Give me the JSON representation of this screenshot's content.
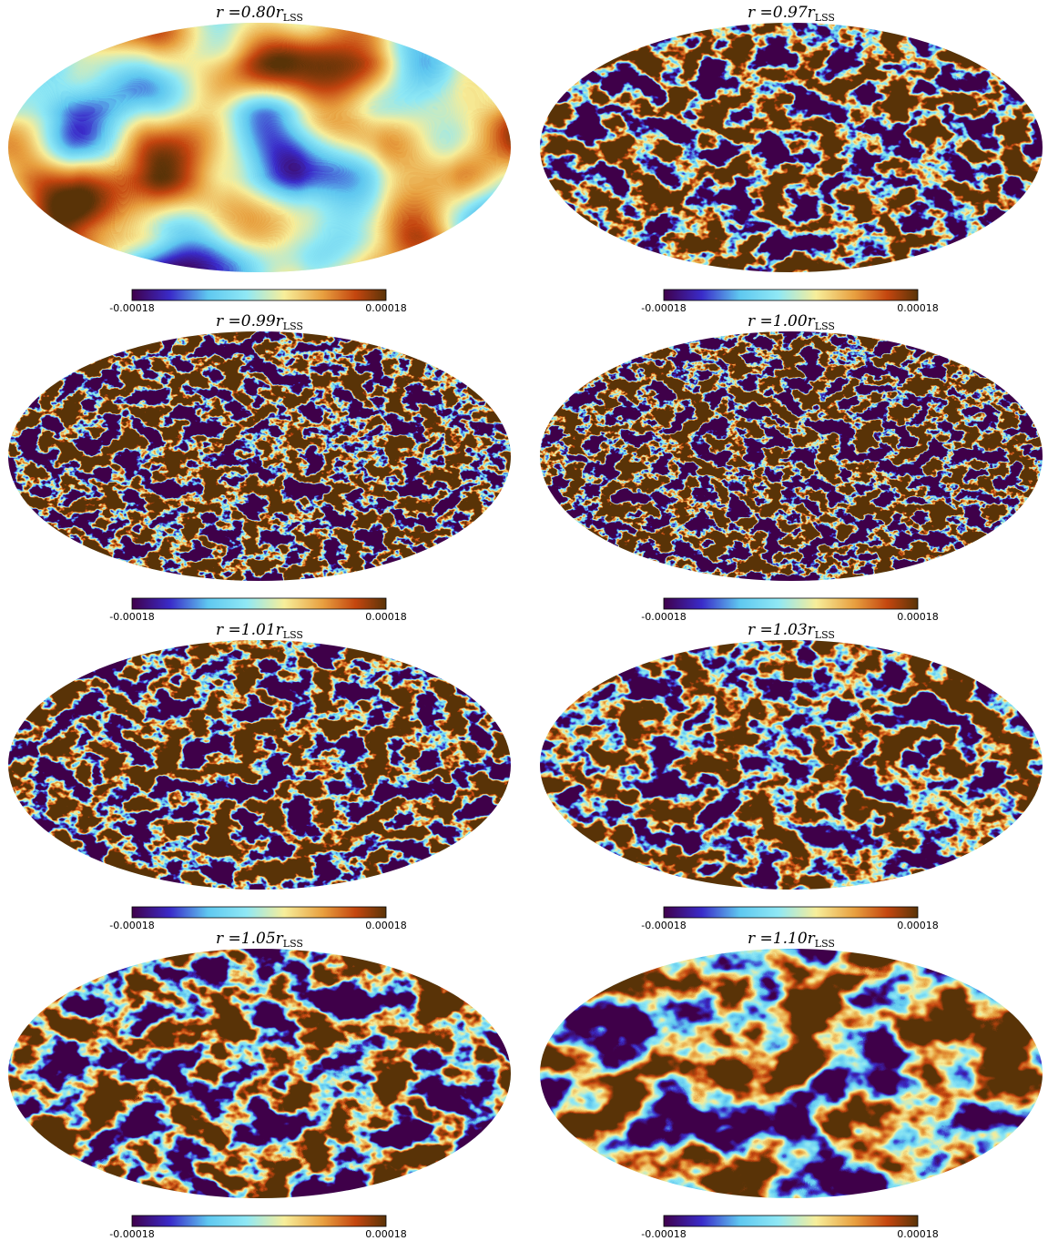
{
  "panels": [
    {
      "title": {
        "main": "r =0.80r",
        "sub": "LSS"
      },
      "colorbar": {
        "min": -0.00018,
        "max": 0.00018
      }
    },
    {
      "title": {
        "main": "r =0.97r",
        "sub": "LSS"
      },
      "colorbar": {
        "min": -0.00018,
        "max": 0.00018
      }
    },
    {
      "title": {
        "main": "r =0.99r",
        "sub": "LSS"
      },
      "colorbar": {
        "min": -0.00018,
        "max": 0.00018
      }
    },
    {
      "title": {
        "main": "r =1.00r",
        "sub": "LSS"
      },
      "colorbar": {
        "min": -0.00018,
        "max": 0.00018
      }
    },
    {
      "title": {
        "main": "r =1.01r",
        "sub": "LSS"
      },
      "colorbar": {
        "min": -0.00018,
        "max": 0.00018
      }
    },
    {
      "title": {
        "main": "r =1.03r",
        "sub": "LSS"
      },
      "colorbar": {
        "min": -0.00018,
        "max": 0.00018
      }
    },
    {
      "title": {
        "main": "r =1.05r",
        "sub": "LSS"
      },
      "colorbar": {
        "min": -0.00018,
        "max": 0.00018
      }
    },
    {
      "title": {
        "main": "r =1.10r",
        "sub": "LSS"
      },
      "colorbar": {
        "min": -0.00018,
        "max": 0.00018
      }
    }
  ]
}
